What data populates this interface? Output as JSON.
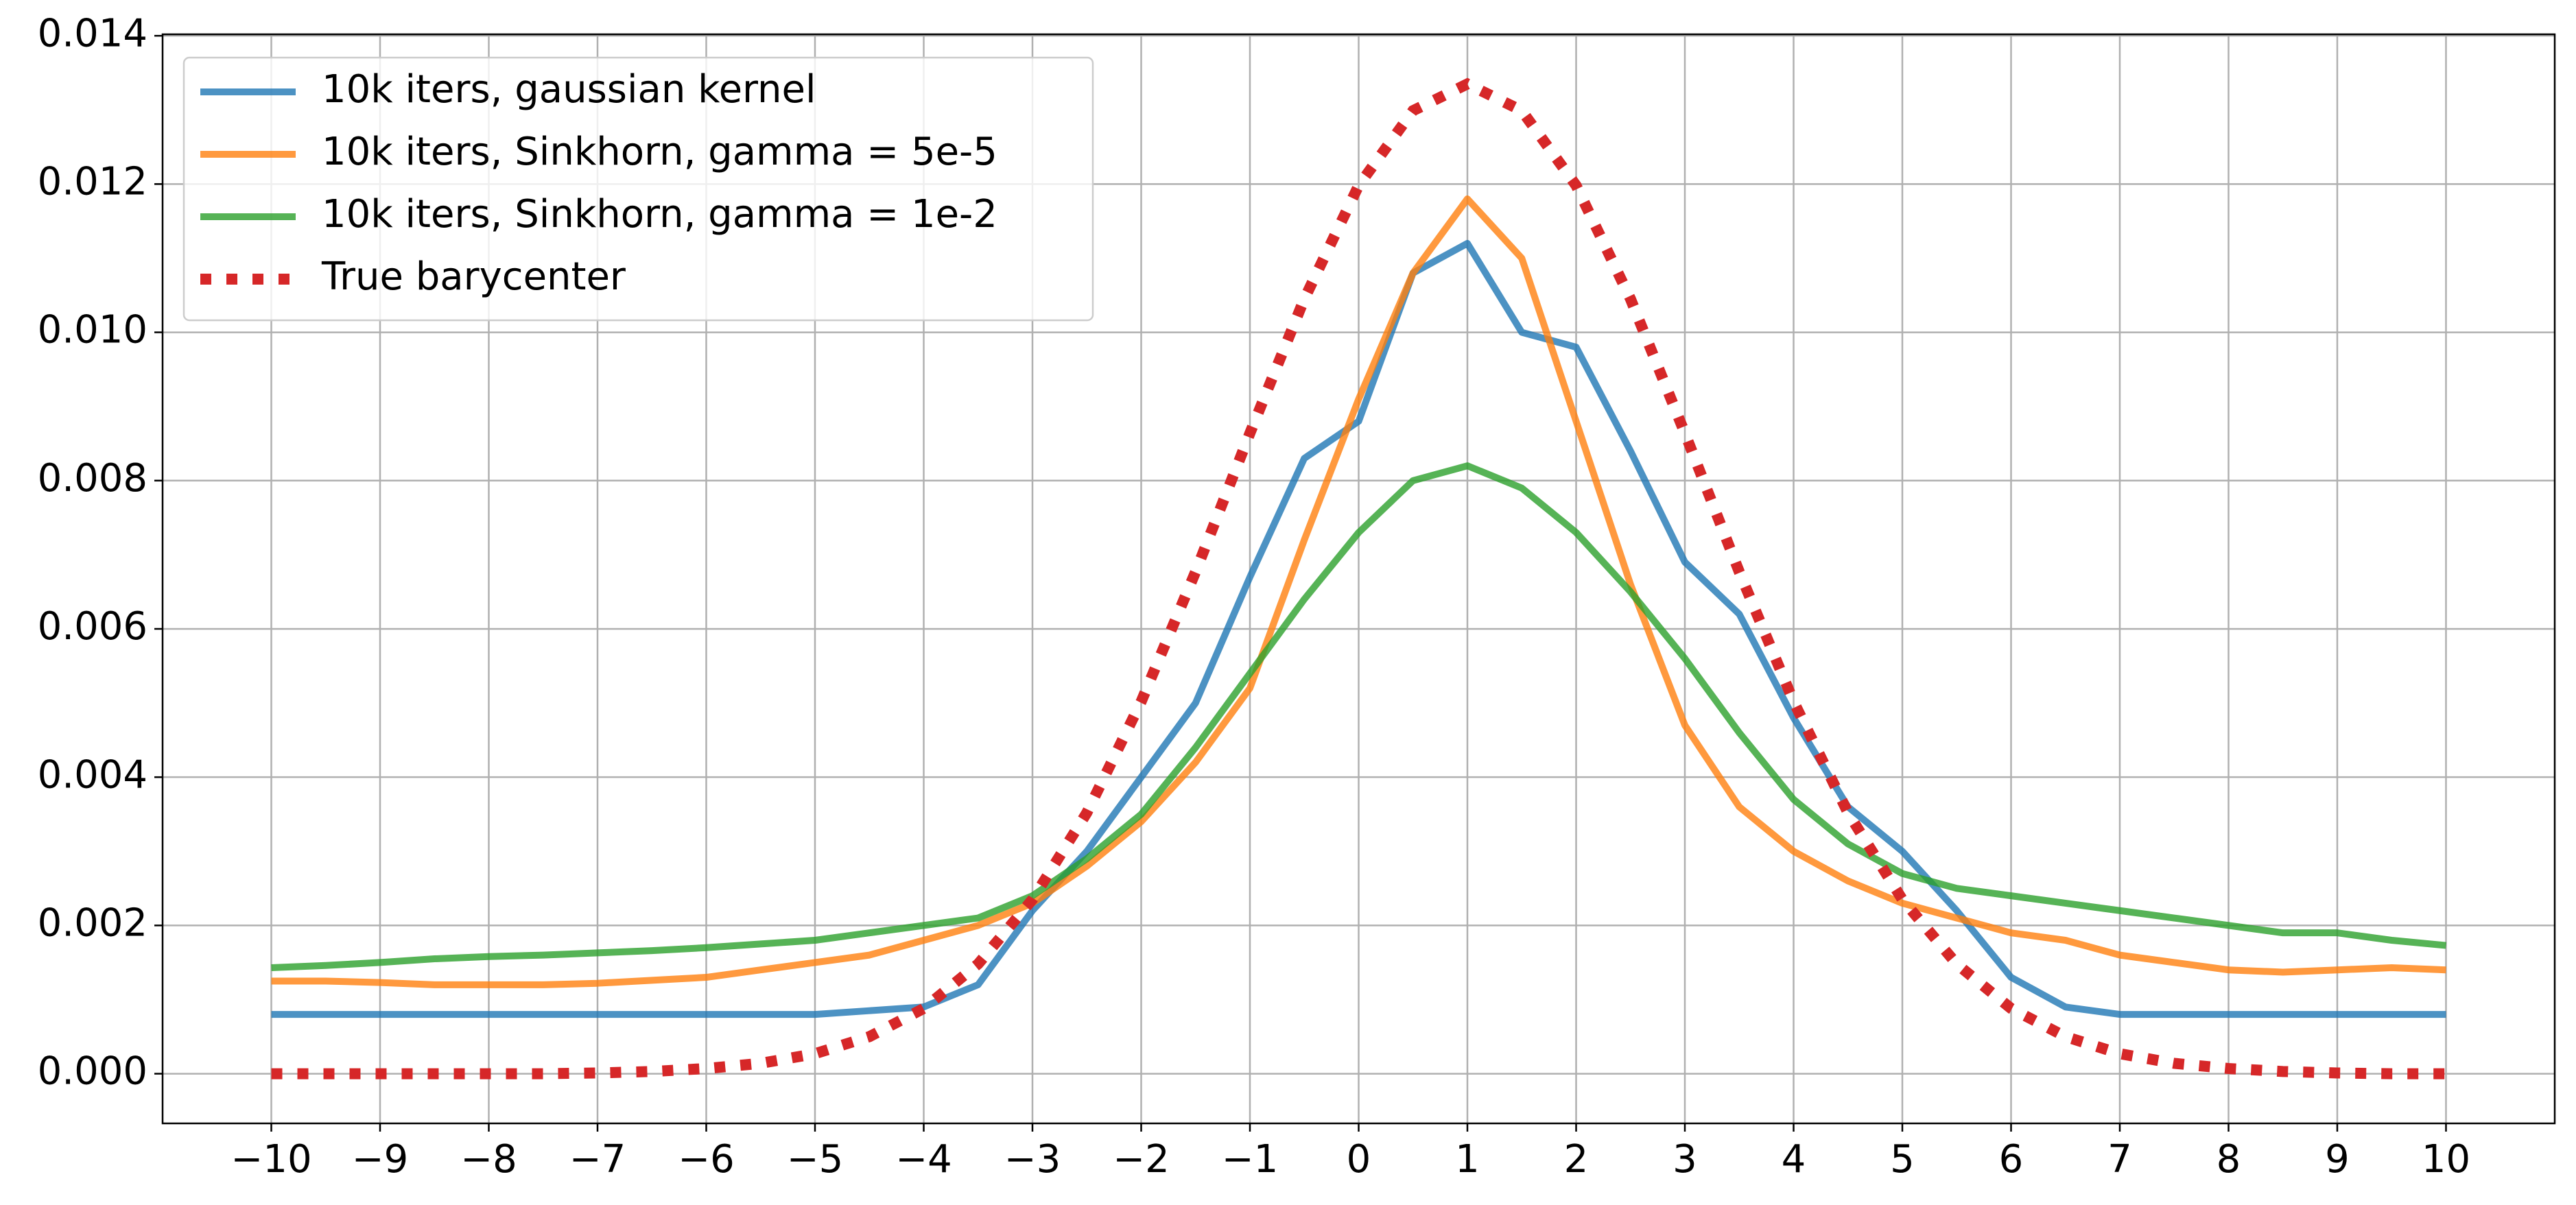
{
  "chart_data": {
    "type": "line",
    "x": [
      -10,
      -9.5,
      -9,
      -8.5,
      -8,
      -7.5,
      -7,
      -6.5,
      -6,
      -5.5,
      -5,
      -4.5,
      -4,
      -3.5,
      -3,
      -2.5,
      -2,
      -1.5,
      -1,
      -0.5,
      0,
      0.5,
      1,
      1.5,
      2,
      2.5,
      3,
      3.5,
      4,
      4.5,
      5,
      5.5,
      6,
      6.5,
      7,
      7.5,
      8,
      8.5,
      9,
      9.5,
      10
    ],
    "series": [
      {
        "name": "10k iters, gaussian kernel",
        "color": "#1f77b4",
        "style": "solid",
        "values": [
          0.0008,
          0.0008,
          0.0008,
          0.0008,
          0.0008,
          0.0008,
          0.0008,
          0.0008,
          0.0008,
          0.0008,
          0.0008,
          0.00085,
          0.0009,
          0.0012,
          0.0022,
          0.003,
          0.004,
          0.005,
          0.0067,
          0.0083,
          0.0088,
          0.0108,
          0.0112,
          0.01,
          0.0098,
          0.0084,
          0.0069,
          0.0062,
          0.0048,
          0.0036,
          0.003,
          0.0022,
          0.0013,
          0.0009,
          0.0008,
          0.0008,
          0.0008,
          0.0008,
          0.0008,
          0.0008,
          0.0008
        ]
      },
      {
        "name": "10k iters, Sinkhorn, gamma = 5e-5",
        "color": "#ff7f0e",
        "style": "solid",
        "values": [
          0.00125,
          0.00125,
          0.00123,
          0.0012,
          0.0012,
          0.0012,
          0.00122,
          0.00126,
          0.0013,
          0.0014,
          0.0015,
          0.0016,
          0.0018,
          0.002,
          0.0023,
          0.0028,
          0.0034,
          0.0042,
          0.0052,
          0.0072,
          0.0091,
          0.0108,
          0.0118,
          0.011,
          0.0088,
          0.0066,
          0.0047,
          0.0036,
          0.003,
          0.0026,
          0.0023,
          0.0021,
          0.0019,
          0.0018,
          0.0016,
          0.0015,
          0.0014,
          0.00137,
          0.0014,
          0.00143,
          0.0014
        ]
      },
      {
        "name": "10k iters, Sinkhorn, gamma = 1e-2",
        "color": "#2ca02c",
        "style": "solid",
        "values": [
          0.00143,
          0.00146,
          0.0015,
          0.00155,
          0.00158,
          0.0016,
          0.00163,
          0.00166,
          0.0017,
          0.00175,
          0.0018,
          0.0019,
          0.002,
          0.0021,
          0.0024,
          0.0029,
          0.0035,
          0.0044,
          0.0054,
          0.0064,
          0.0073,
          0.008,
          0.0082,
          0.0079,
          0.0073,
          0.0065,
          0.0056,
          0.0046,
          0.0037,
          0.0031,
          0.0027,
          0.0025,
          0.0024,
          0.0023,
          0.0022,
          0.0021,
          0.002,
          0.0019,
          0.0019,
          0.0018,
          0.00173
        ]
      },
      {
        "name": "True barycenter",
        "color": "#d62728",
        "style": "dotted",
        "values": [
          0,
          0,
          0,
          0,
          0,
          0,
          1e-05,
          3e-05,
          7e-05,
          0.00014,
          0.00027,
          0.0005,
          0.00088,
          0.00148,
          0.00235,
          0.00352,
          0.00502,
          0.00677,
          0.00864,
          0.01045,
          0.01198,
          0.01299,
          0.01335,
          0.01299,
          0.01198,
          0.01045,
          0.00864,
          0.00677,
          0.00502,
          0.00352,
          0.00235,
          0.00148,
          0.00088,
          0.0005,
          0.00027,
          0.00014,
          7e-05,
          3e-05,
          1e-05,
          0,
          0
        ]
      }
    ],
    "xlim": [
      -11,
      11
    ],
    "ylim": [
      -0.00067,
      0.01402
    ],
    "xticks": [
      {
        "value": -10,
        "label": "−10"
      },
      {
        "value": -9,
        "label": "−9"
      },
      {
        "value": -8,
        "label": "−8"
      },
      {
        "value": -7,
        "label": "−7"
      },
      {
        "value": -6,
        "label": "−6"
      },
      {
        "value": -5,
        "label": "−5"
      },
      {
        "value": -4,
        "label": "−4"
      },
      {
        "value": -3,
        "label": "−3"
      },
      {
        "value": -2,
        "label": "−2"
      },
      {
        "value": -1,
        "label": "−1"
      },
      0,
      1,
      2,
      3,
      4,
      5,
      6,
      7,
      8,
      9,
      10
    ],
    "yticks": [
      {
        "value": 0,
        "label": "0.000"
      },
      {
        "value": 0.002,
        "label": "0.002"
      },
      {
        "value": 0.004,
        "label": "0.004"
      },
      {
        "value": 0.006,
        "label": "0.006"
      },
      {
        "value": 0.008,
        "label": "0.008"
      },
      {
        "value": 0.01,
        "label": "0.010"
      },
      {
        "value": 0.012,
        "label": "0.012"
      },
      {
        "value": 0.014,
        "label": "0.014"
      }
    ],
    "grid": true,
    "legend": "upper left"
  }
}
